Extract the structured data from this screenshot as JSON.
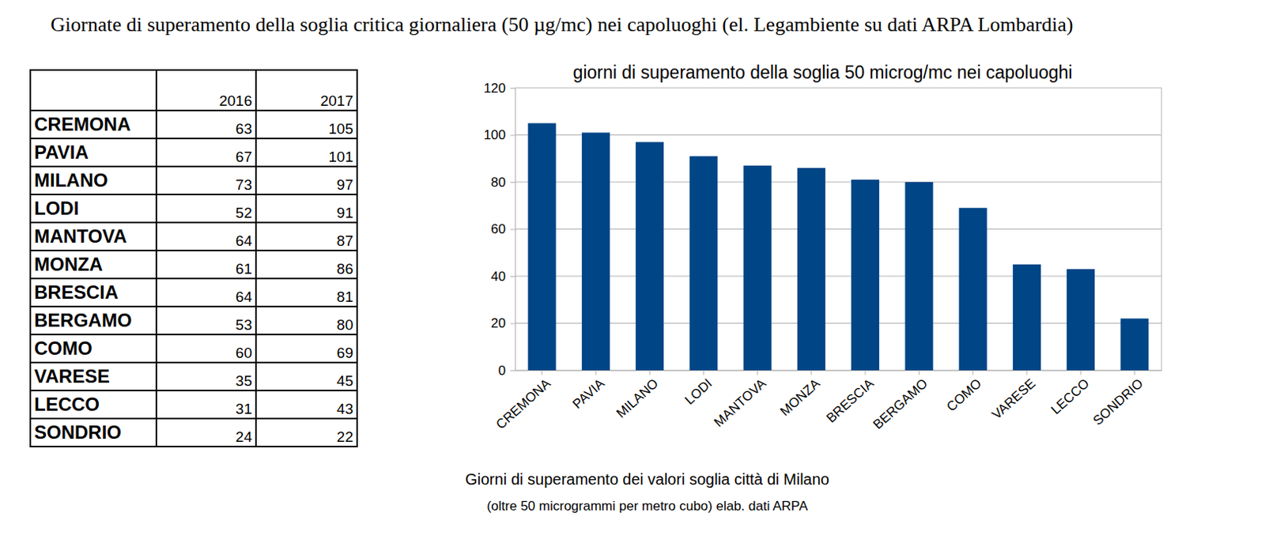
{
  "header": {
    "title": "Giornate di superamento della soglia critica giornaliera (50 µg/mc) nei capoluoghi (el. Legambiente su dati ARPA Lombardia)"
  },
  "table": {
    "columns": [
      "2016",
      "2017"
    ],
    "rows": [
      [
        "CREMONA",
        63,
        105
      ],
      [
        "PAVIA",
        67,
        101
      ],
      [
        "MILANO",
        73,
        97
      ],
      [
        "LODI",
        52,
        91
      ],
      [
        "MANTOVA",
        64,
        87
      ],
      [
        "MONZA",
        61,
        86
      ],
      [
        "BRESCIA",
        64,
        81
      ],
      [
        "BERGAMO",
        53,
        80
      ],
      [
        "COMO",
        60,
        69
      ],
      [
        "VARESE",
        35,
        45
      ],
      [
        "LECCO",
        31,
        43
      ],
      [
        "SONDRIO",
        24,
        22
      ]
    ]
  },
  "chart_data": {
    "type": "bar",
    "title": "giorni di superamento della soglia 50 microg/mc nei capoluoghi",
    "categories": [
      "CREMONA",
      "PAVIA",
      "MILANO",
      "LODI",
      "MANTOVA",
      "MONZA",
      "BRESCIA",
      "BERGAMO",
      "COMO",
      "VARESE",
      "LECCO",
      "SONDRIO"
    ],
    "values": [
      105,
      101,
      97,
      91,
      87,
      86,
      81,
      80,
      69,
      45,
      43,
      22
    ],
    "color": "#004586",
    "ylim": [
      0,
      120
    ],
    "yticks": [
      0,
      20,
      40,
      60,
      80,
      100,
      120
    ],
    "grid": true
  },
  "caption": {
    "title": "Giorni di superamento dei valori soglia città di Milano",
    "subtitle": "(oltre 50 microgrammi per metro cubo) elab. dati ARPA"
  }
}
